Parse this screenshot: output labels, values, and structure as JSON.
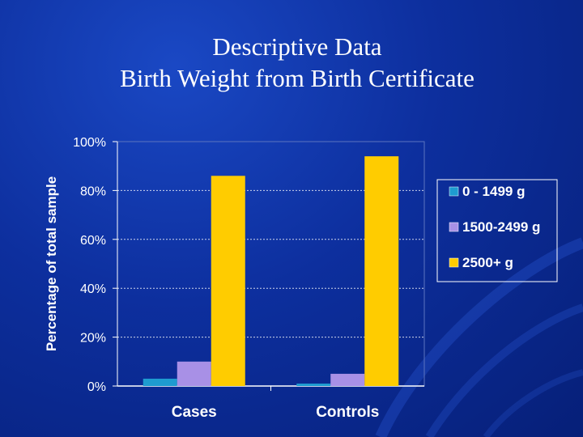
{
  "slide": {
    "title_line1": "Descriptive Data",
    "title_line2": "Birth Weight from Birth Certificate"
  },
  "colors": {
    "background": "#0d2f9e",
    "text": "#ffffff",
    "series": [
      "#1e9bd0",
      "#a890e6",
      "#ffcc00"
    ]
  },
  "chart_data": {
    "type": "bar",
    "title": "",
    "xlabel": "",
    "ylabel": "Percentage of total sample",
    "categories": [
      "Cases",
      "Controls"
    ],
    "series": [
      {
        "name": "0 - 1499 g",
        "values": [
          3,
          1
        ]
      },
      {
        "name": "1500-2499 g",
        "values": [
          10,
          5
        ]
      },
      {
        "name": "2500+ g",
        "values": [
          86,
          94
        ]
      }
    ],
    "ylim": [
      0,
      100
    ],
    "yticks": [
      "0%",
      "20%",
      "40%",
      "60%",
      "80%",
      "100%"
    ],
    "grid": true,
    "legend_position": "right"
  }
}
